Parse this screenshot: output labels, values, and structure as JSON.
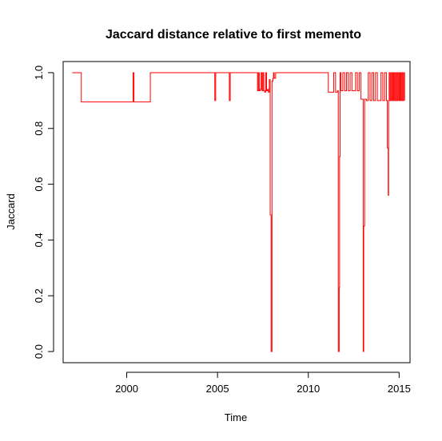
{
  "chart_data": {
    "type": "line",
    "title": "Jaccard distance relative to first memento",
    "xlabel": "Time",
    "ylabel": "Jaccard",
    "xlim": [
      1996.5,
      2015.6
    ],
    "ylim": [
      -0.04,
      1.04
    ],
    "x_ticks": [
      2000,
      2005,
      2010,
      2015
    ],
    "x_tick_labels": [
      "2000",
      "2005",
      "2010",
      "2015"
    ],
    "y_ticks": [
      0.0,
      0.2,
      0.4,
      0.6,
      0.8,
      1.0
    ],
    "y_tick_labels": [
      "0.0",
      "0.2",
      "0.4",
      "0.6",
      "0.8",
      "1.0"
    ],
    "grid": false,
    "legend": "none",
    "line_color": "#ff0000",
    "series": [
      {
        "x": [
          1997.0,
          1997.3,
          1997.5,
          2000.3,
          2000.35,
          2000.4,
          2001.3,
          2001.3,
          2004.8,
          2004.85,
          2004.9,
          2005.6,
          2005.65,
          2005.7,
          2007.1,
          2007.2,
          2007.25,
          2007.3,
          2007.35,
          2007.4,
          2007.45,
          2007.5,
          2007.55,
          2007.6,
          2007.65,
          2007.7,
          2007.75,
          2007.8,
          2007.85,
          2007.9,
          2007.95,
          2008.0,
          2008.05,
          2008.08,
          2008.12,
          2008.2,
          2008.25,
          2008.3,
          2011.0,
          2011.1,
          2011.3,
          2011.4,
          2011.5,
          2011.6,
          2011.65,
          2011.7,
          2011.72,
          2011.75,
          2011.8,
          2011.9,
          2012.0,
          2012.1,
          2012.2,
          2012.3,
          2012.4,
          2012.5,
          2012.6,
          2012.7,
          2012.8,
          2012.9,
          2013.0,
          2013.02,
          2013.05,
          2013.1,
          2013.2,
          2013.3,
          2013.4,
          2013.5,
          2013.6,
          2013.7,
          2013.8,
          2013.9,
          2014.0,
          2014.1,
          2014.2,
          2014.3,
          2014.35,
          2014.4,
          2014.42,
          2014.45,
          2014.5,
          2014.55,
          2014.6,
          2014.65,
          2014.7,
          2014.75,
          2014.8,
          2014.85,
          2014.9,
          2014.95,
          2015.0,
          2015.05,
          2015.1,
          2015.15,
          2015.2,
          2015.25,
          2015.3
        ],
        "y": [
          1.0,
          1.0,
          0.895,
          0.895,
          1.0,
          0.895,
          0.895,
          1.0,
          1.0,
          0.9,
          1.0,
          1.0,
          0.9,
          1.0,
          1.0,
          0.935,
          1.0,
          0.935,
          0.94,
          1.0,
          0.935,
          1.0,
          0.935,
          0.93,
          1.0,
          0.935,
          0.94,
          0.93,
          0.975,
          0.49,
          0.0,
          0.97,
          0.98,
          1.0,
          0.98,
          1.0,
          1.0,
          1.0,
          1.0,
          0.93,
          0.93,
          1.0,
          0.93,
          0.935,
          0.0,
          0.23,
          0.7,
          1.0,
          0.935,
          1.0,
          0.935,
          1.0,
          0.935,
          1.0,
          0.935,
          0.935,
          1.0,
          0.935,
          1.0,
          0.905,
          0.905,
          0.0,
          0.45,
          0.905,
          0.9,
          1.0,
          0.9,
          1.0,
          0.9,
          1.0,
          0.9,
          0.9,
          1.0,
          0.9,
          1.0,
          0.9,
          0.73,
          0.56,
          0.9,
          1.0,
          0.9,
          1.0,
          0.9,
          1.0,
          0.9,
          1.0,
          0.9,
          1.0,
          0.9,
          1.0,
          0.9,
          1.0,
          0.9,
          1.0,
          0.9,
          1.0,
          0.9
        ]
      }
    ]
  }
}
